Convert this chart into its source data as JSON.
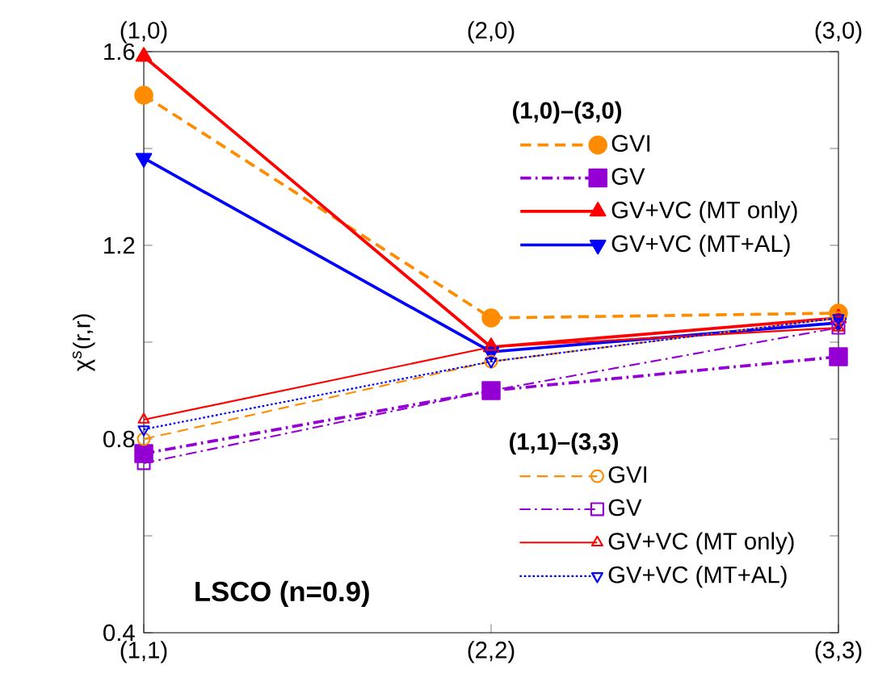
{
  "chart_data": {
    "type": "line",
    "ylabel": "χ$^{s}$(r,r)",
    "categories": [
      "(1,1)",
      "(2,2)",
      "(3,3)"
    ],
    "ylim": [
      0.4,
      1.6
    ],
    "yticks": [
      0.4,
      {
        "value": 0.6,
        "label": null
      },
      0.8,
      {
        "value": 1.0,
        "label": null
      },
      1.2,
      {
        "value": 1.4,
        "label": null
      },
      1.6
    ],
    "legend": "right",
    "legend_title": [
      "(1,0)–(3,0)",
      "(1,1)–(3,3)"
    ],
    "annotations": [
      "LSCO (n=0.9)",
      "(1,0)",
      "(2,0)",
      "(3,0)"
    ],
    "series": [
      {
        "name": "GVI",
        "color": "#ff8c00",
        "marker": "circle",
        "line_style": "dashed",
        "values": [
          1.51,
          1.05,
          1.06
        ]
      },
      {
        "name": "GV",
        "color": "#9400d3",
        "marker": "square",
        "line_style": "dashdotted",
        "values": [
          0.77,
          0.9,
          0.97
        ]
      },
      {
        "name": "GV+VC (MT only)",
        "color": "#ff0000",
        "marker": "triangle",
        "line_style": "solid",
        "values": [
          1.59,
          0.99,
          1.05
        ]
      },
      {
        "name": "GV+VC (MT+AL)",
        "color": "#0000ff",
        "marker": "triangle down",
        "line_style": "solid",
        "values": [
          1.38,
          0.98,
          1.04
        ]
      },
      {
        "name": "GVI",
        "color": "#ff8c00",
        "marker": "circle",
        "line_style": "dashed",
        "values": [
          0.8,
          0.96,
          1.05
        ]
      },
      {
        "name": "GV",
        "color": "#9400d3",
        "marker": "square",
        "line_style": "dashdotted",
        "values": [
          0.75,
          0.9,
          1.03
        ]
      },
      {
        "name": "GV+VC (MT only)",
        "color": "#ff0000",
        "marker": "triangle",
        "line_style": "solid",
        "values": [
          0.84,
          0.99,
          1.03
        ]
      },
      {
        "name": "GV+VC (MT+AL)",
        "color": "#0000ff",
        "marker": "triangle down",
        "line_style": "dotted",
        "values": [
          0.82,
          0.96,
          1.05
        ]
      }
    ]
  }
}
